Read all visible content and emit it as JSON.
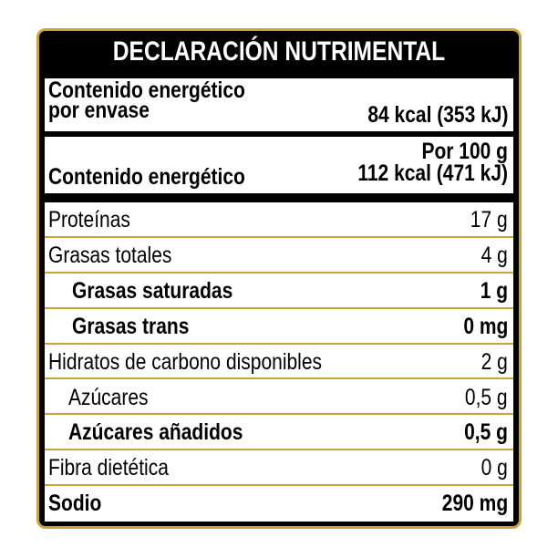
{
  "header": {
    "title": "DECLARACIÓN NUTRIMENTAL"
  },
  "energy_per_container": {
    "label": [
      "Contenido energético",
      "por envase"
    ],
    "value": "84 kcal (353 kJ)"
  },
  "per_100g": {
    "header": "Por 100 g",
    "label": "Contenido energético",
    "value": "112 kcal (471 kJ)"
  },
  "table": {
    "rows": [
      [
        "Proteínas",
        "17 g"
      ],
      [
        "Grasas totales",
        "4 g"
      ],
      [
        "Grasas saturadas",
        "1 g"
      ],
      [
        "Grasas trans",
        "0 mg"
      ],
      [
        "Hidratos de carbono disponibles",
        "2 g"
      ],
      [
        "Azúcares",
        "0,5 g"
      ],
      [
        "Azúcares añadidos",
        "0,5 g"
      ],
      [
        "Fibra dietética",
        "0 g"
      ],
      [
        "Sodio",
        "290 mg"
      ]
    ]
  }
}
